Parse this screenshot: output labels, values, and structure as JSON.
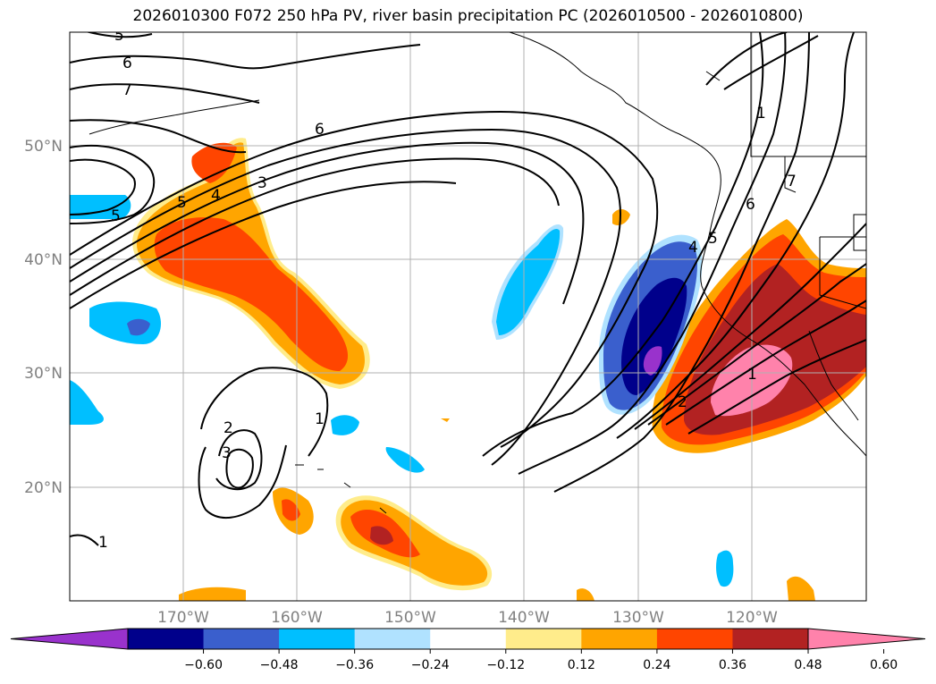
{
  "title": "2026010300 F072 250 hPa PV, river basin precipitation PC (2026010500 - 2026010800)",
  "lat_ticks": [
    "50°N",
    "40°N",
    "30°N",
    "20°N"
  ],
  "lon_ticks": [
    "170°W",
    "160°W",
    "150°W",
    "140°W",
    "130°W",
    "120°W"
  ],
  "contour_labels": [
    "5",
    "6",
    "7",
    "6",
    "5",
    "4",
    "3",
    "5",
    "2",
    "3",
    "1",
    "1",
    "7",
    "6",
    "5",
    "4",
    "1",
    "2",
    "1"
  ],
  "colorbar": {
    "ticks": [
      "−0.60",
      "−0.48",
      "−0.36",
      "−0.24",
      "−0.12",
      "0.12",
      "0.24",
      "0.36",
      "0.48",
      "0.60"
    ],
    "colors": [
      "#9932cc",
      "#00008b",
      "#3a5fcd",
      "#00bfff",
      "#b0e2ff",
      "#ffffff",
      "#ffec8b",
      "#ffa500",
      "#ff4500",
      "#b22222",
      "#ff82ab"
    ]
  }
}
